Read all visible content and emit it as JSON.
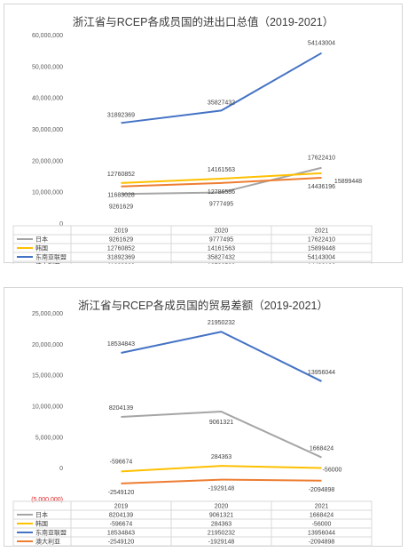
{
  "chart_data": [
    {
      "type": "line",
      "title": "浙江省与RCEP各成员国的进出口总值（2019-2021）",
      "categories": [
        "2019",
        "2020",
        "2021"
      ],
      "ylim": [
        0,
        60000000
      ],
      "yticks": [
        "0",
        "10,000,000",
        "20,000,000",
        "30,000,000",
        "40,000,000",
        "50,000,000",
        "60,000,000"
      ],
      "yticks_values": [
        0,
        10000000,
        20000000,
        30000000,
        40000000,
        50000000,
        60000000
      ],
      "grid": false,
      "legend": "data-table-bottom",
      "series": [
        {
          "name": "日本",
          "color": "#a5a5a5",
          "values": [
            9261629,
            9777495,
            17622410
          ],
          "labels": [
            "9261629",
            "9777495",
            "17622410"
          ]
        },
        {
          "name": "韩国",
          "color": "#ffc000",
          "values": [
            12760852,
            14161563,
            15899448
          ],
          "labels": [
            "12760852",
            "14161563",
            "15899448"
          ]
        },
        {
          "name": "东南亚联盟",
          "color": "#4472c4",
          "values": [
            31892369,
            35827432,
            54143004
          ],
          "labels": [
            "31892369",
            "35827432",
            "54143004"
          ]
        },
        {
          "name": "澳大利亚",
          "color": "#ed7d31",
          "values": [
            11683028,
            12786586,
            14436196
          ],
          "labels": [
            "11683028",
            "12786586",
            "14436196"
          ]
        }
      ]
    },
    {
      "type": "line",
      "title": "浙江省与RCEP各成员国的贸易差额（2019-2021）",
      "categories": [
        "2019",
        "2020",
        "2021"
      ],
      "ylim": [
        -5000000,
        25000000
      ],
      "yticks": [
        "(5,000,000)",
        "0",
        "5,000,000",
        "10,000,000",
        "15,000,000",
        "20,000,000",
        "25,000,000"
      ],
      "yticks_values": [
        -5000000,
        0,
        5000000,
        10000000,
        15000000,
        20000000,
        25000000
      ],
      "grid": false,
      "legend": "data-table-bottom",
      "series": [
        {
          "name": "日本",
          "color": "#a5a5a5",
          "values": [
            8204139,
            9061321,
            1668424
          ],
          "labels": [
            "8204139",
            "9061321",
            "1668424"
          ]
        },
        {
          "name": "韩国",
          "color": "#ffc000",
          "values": [
            -596674,
            284363,
            -56000
          ],
          "labels": [
            "-596674",
            "284363",
            "-56000"
          ]
        },
        {
          "name": "东南亚联盟",
          "color": "#4472c4",
          "values": [
            18534843,
            21950232,
            13956044
          ],
          "labels": [
            "18534843",
            "21950232",
            "13956044"
          ]
        },
        {
          "name": "澳大利亚",
          "color": "#ed7d31",
          "values": [
            -2549120,
            -1929148,
            -2094898
          ],
          "labels": [
            "-2549120",
            "-1929148",
            "-2094898"
          ]
        }
      ]
    }
  ]
}
